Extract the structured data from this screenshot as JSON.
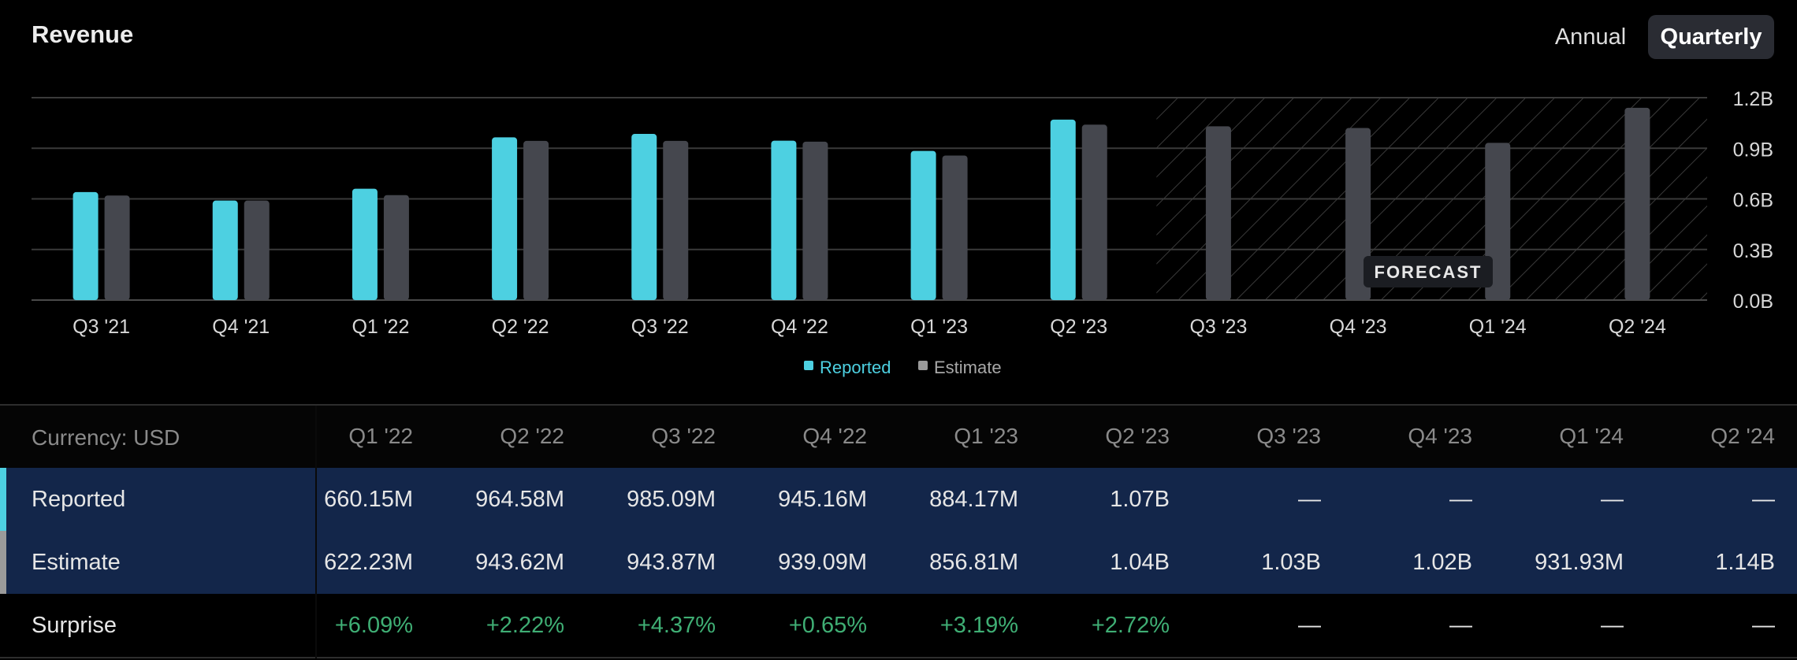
{
  "header": {
    "title": "Revenue"
  },
  "period_toggle": {
    "options": [
      "Annual",
      "Quarterly"
    ],
    "selected": "Quarterly"
  },
  "chart_data": {
    "type": "bar",
    "categories": [
      "Q3 '21",
      "Q4 '21",
      "Q1 '22",
      "Q2 '22",
      "Q3 '22",
      "Q4 '22",
      "Q1 '23",
      "Q2 '23",
      "Q3 '23",
      "Q4 '23",
      "Q1 '24",
      "Q2 '24"
    ],
    "series": [
      {
        "name": "Reported",
        "color": "#4dd0e1",
        "values": [
          0.64,
          0.59,
          0.66015,
          0.96458,
          0.98509,
          0.94516,
          0.88417,
          1.07,
          null,
          null,
          null,
          null
        ]
      },
      {
        "name": "Estimate",
        "color": "#45474e",
        "values": [
          0.62,
          0.59,
          0.62223,
          0.94362,
          0.94387,
          0.93909,
          0.85681,
          1.04,
          1.03,
          1.02,
          0.93193,
          1.14
        ]
      }
    ],
    "y_ticks": [
      "0.0B",
      "0.3B",
      "0.6B",
      "0.9B",
      "1.2B"
    ],
    "ylim": [
      0,
      1.2
    ],
    "forecast_label": "FORECAST",
    "forecast_start_index": 8,
    "legend": [
      "Reported",
      "Estimate"
    ],
    "legend_position": "bottom-center",
    "y_axis_side": "right",
    "grid": true
  },
  "table": {
    "currency_label": "Currency: USD",
    "columns": [
      "Q1 '22",
      "Q2 '22",
      "Q3 '22",
      "Q4 '22",
      "Q1 '23",
      "Q2 '23",
      "Q3 '23",
      "Q4 '23",
      "Q1 '24",
      "Q2 '24"
    ],
    "rows": [
      {
        "label": "Reported",
        "indicator_color": "#4dd0e1",
        "values": [
          "660.15M",
          "964.58M",
          "985.09M",
          "945.16M",
          "884.17M",
          "1.07B",
          "—",
          "—",
          "—",
          "—"
        ]
      },
      {
        "label": "Estimate",
        "indicator_color": "#9a9a9a",
        "values": [
          "622.23M",
          "943.62M",
          "943.87M",
          "939.09M",
          "856.81M",
          "1.04B",
          "1.03B",
          "1.02B",
          "931.93M",
          "1.14B"
        ]
      },
      {
        "label": "Surprise",
        "values": [
          "+6.09%",
          "+2.22%",
          "+4.37%",
          "+0.65%",
          "+3.19%",
          "+2.72%",
          "—",
          "—",
          "—",
          "—"
        ]
      }
    ]
  }
}
